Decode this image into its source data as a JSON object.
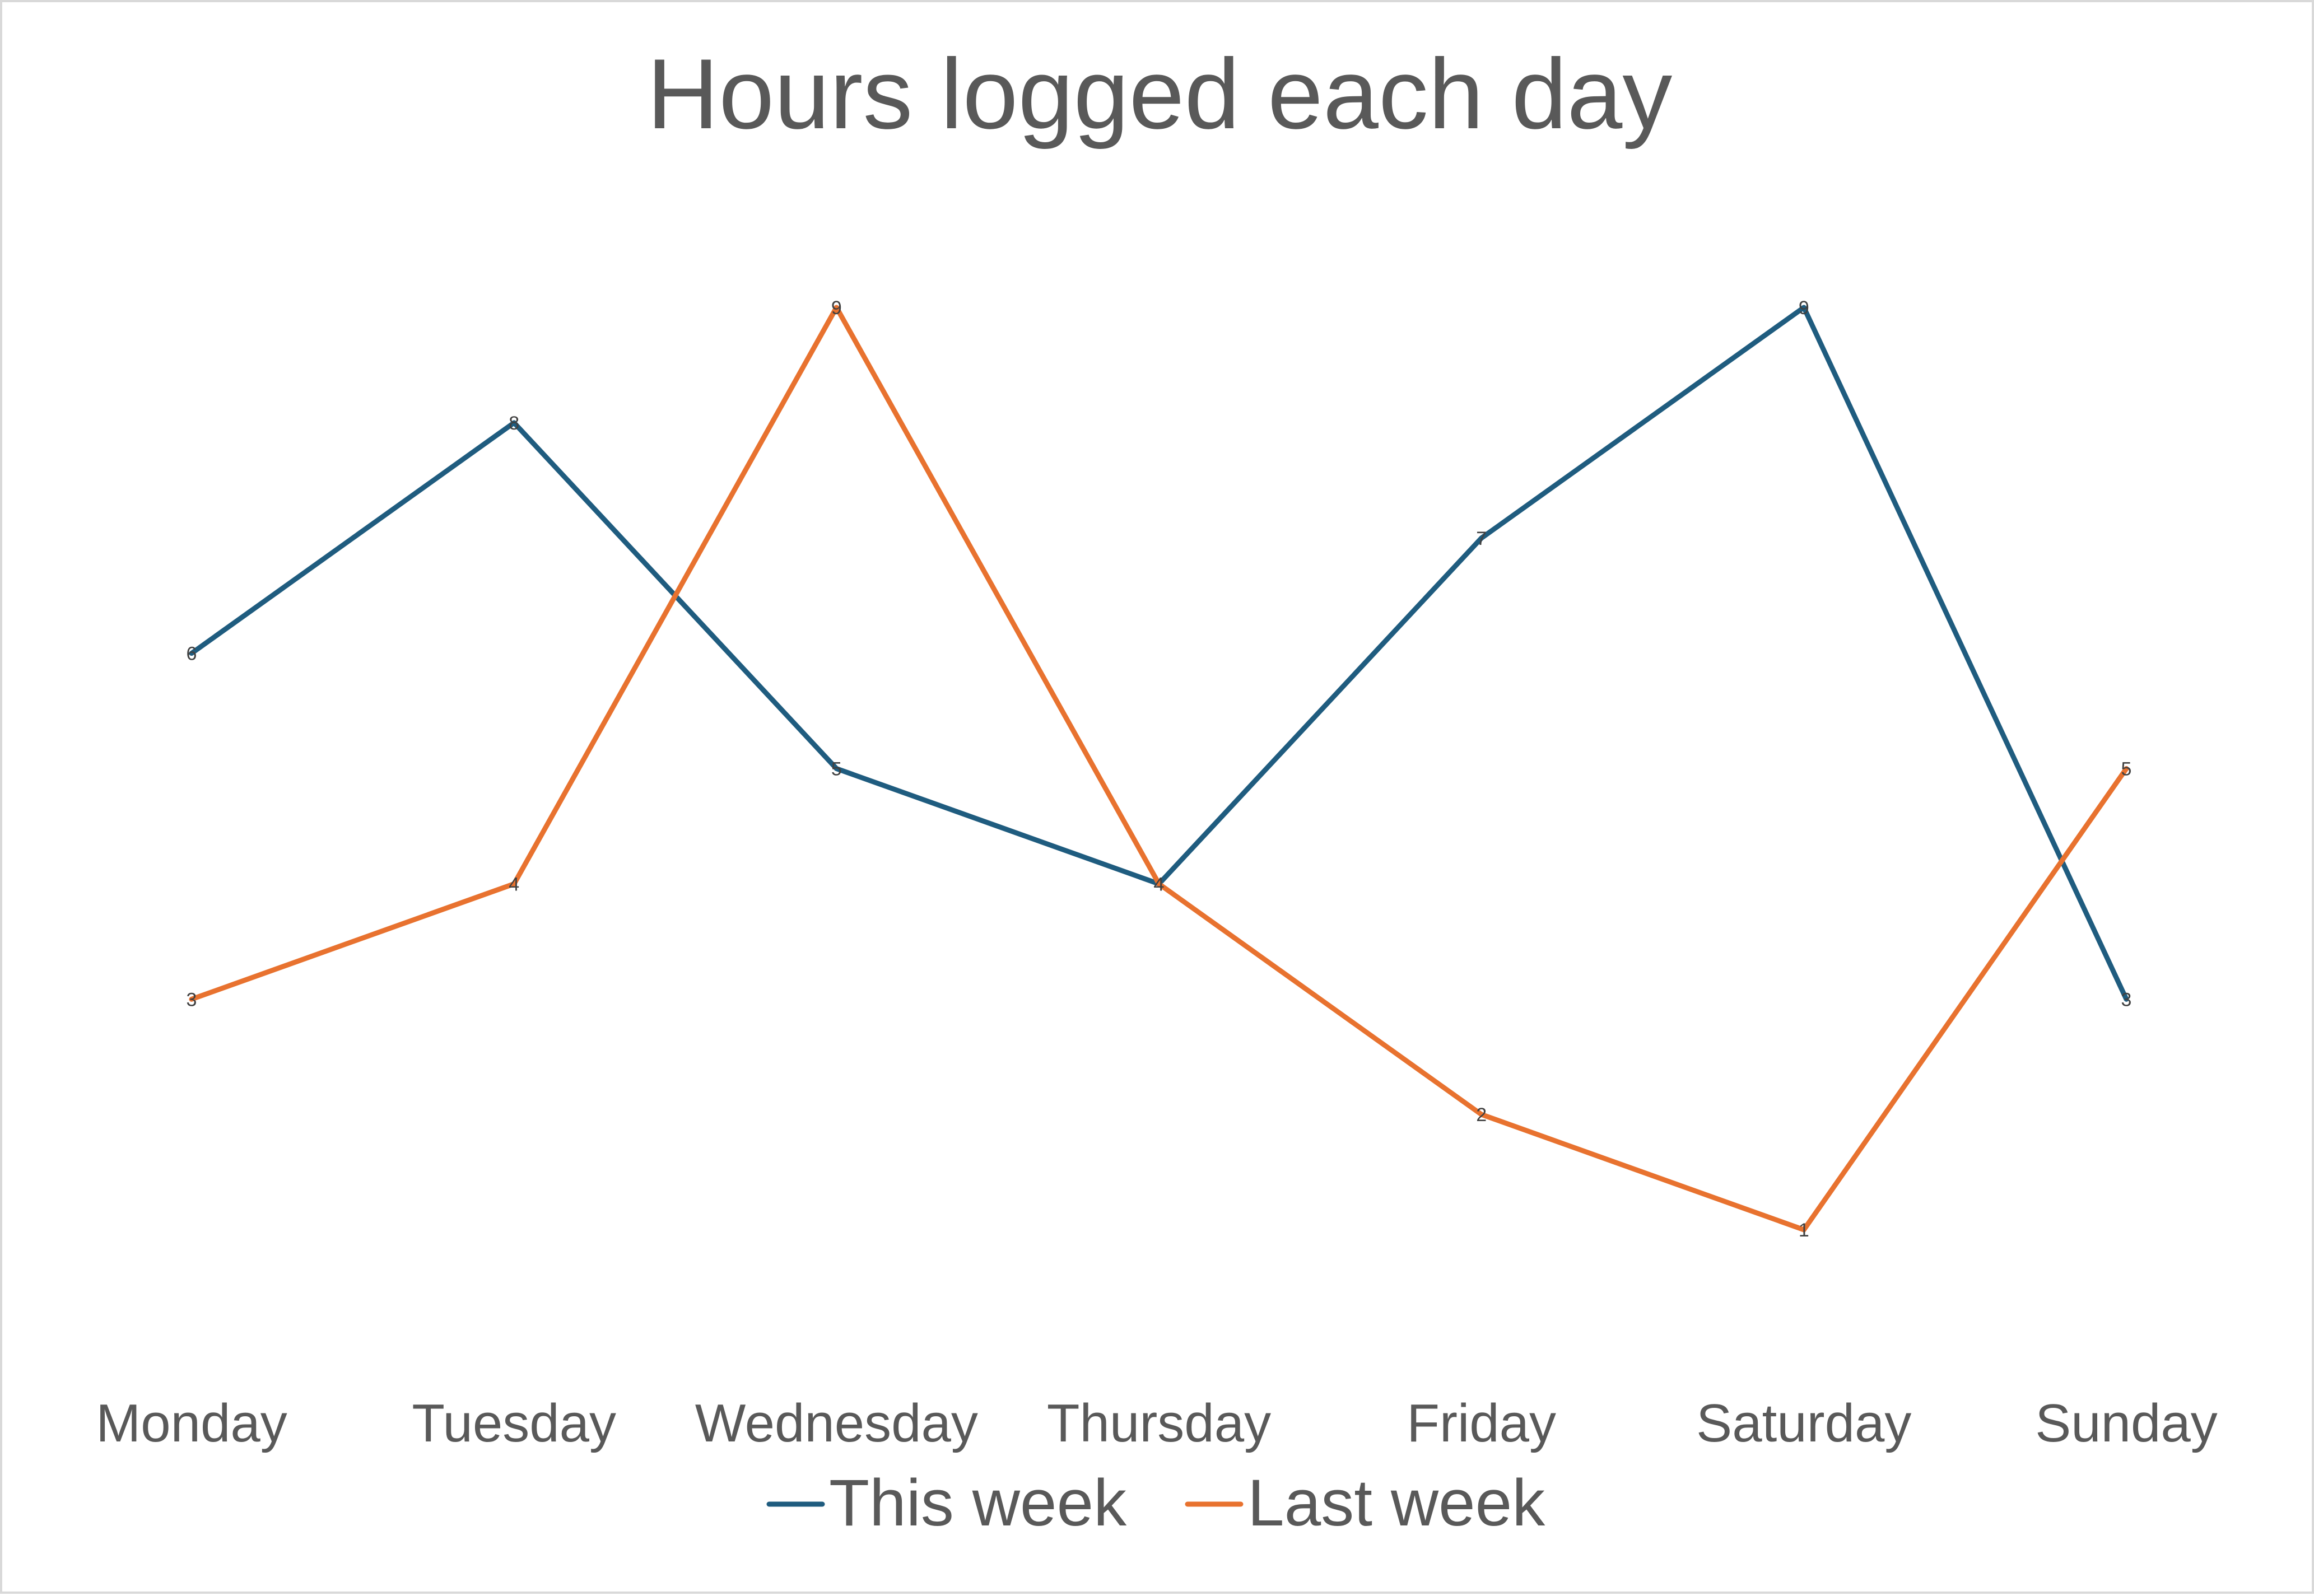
{
  "chart_data": {
    "type": "line",
    "title": "Hours logged each day",
    "xlabel": "",
    "ylabel": "",
    "categories": [
      "Monday",
      "Tuesday",
      "Wednesday",
      "Thursday",
      "Friday",
      "Saturday",
      "Sunday"
    ],
    "series": [
      {
        "name": "This week",
        "values": [
          6,
          8,
          5,
          4,
          7,
          9,
          3
        ],
        "color": "#1f5c7f"
      },
      {
        "name": "Last week",
        "values": [
          3,
          4,
          9,
          4,
          2,
          1,
          5
        ],
        "color": "#e8722f"
      }
    ],
    "ylim": [
      1,
      9
    ],
    "grid": false,
    "y_axis_visible": false,
    "data_labels": true,
    "legend_position": "bottom"
  }
}
